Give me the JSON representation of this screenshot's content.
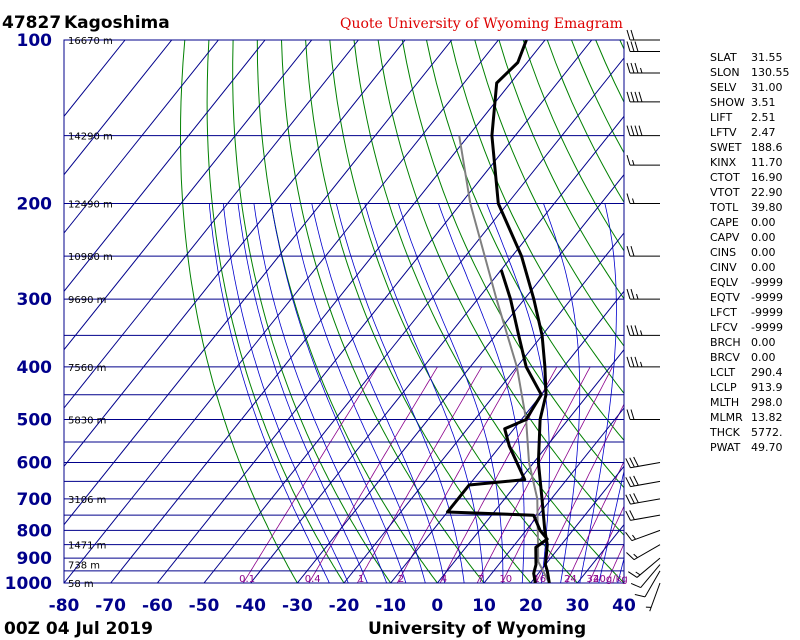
{
  "header": {
    "station_id": "47827",
    "station_name": "Kagoshima",
    "source_note": "Quote University of Wyoming Emagram"
  },
  "footer": {
    "time": "00Z 04 Jul 2019",
    "credit": "University of Wyoming"
  },
  "chart_data": {
    "type": "skew-t",
    "pressure_axis": {
      "log_scale": true,
      "range_hpa": [
        1000,
        100
      ],
      "ticks": [
        100,
        200,
        300,
        400,
        500,
        600,
        700,
        800,
        900,
        1000
      ]
    },
    "temperature_axis": {
      "range_c": [
        -80,
        40
      ],
      "ticks": [
        -80,
        -70,
        -60,
        -50,
        -40,
        -30,
        -20,
        -10,
        0,
        10,
        20,
        30,
        40
      ]
    },
    "height_labels": [
      {
        "p": 100,
        "text": "16670 m"
      },
      {
        "p": 150,
        "text": "14290 m"
      },
      {
        "p": 200,
        "text": "12490 m"
      },
      {
        "p": 250,
        "text": "10980 m"
      },
      {
        "p": 300,
        "text": "9690 m"
      },
      {
        "p": 400,
        "text": "7560 m"
      },
      {
        "p": 500,
        "text": "5830 m"
      },
      {
        "p": 700,
        "text": "3106 m"
      },
      {
        "p": 850,
        "text": "1471 m"
      },
      {
        "p": 925,
        "text": "738 m"
      },
      {
        "p": 1000,
        "text": "58 m"
      }
    ],
    "mixing_ratio_labels": [
      "0.1",
      "0.4",
      "1",
      "2",
      "4",
      "7",
      "10",
      "16",
      "24",
      "32",
      "40g/kg"
    ],
    "temperature_profile": [
      {
        "p": 1000,
        "t": 24
      },
      {
        "p": 950,
        "t": 21.5
      },
      {
        "p": 925,
        "t": 20
      },
      {
        "p": 850,
        "t": 17
      },
      {
        "p": 800,
        "t": 14
      },
      {
        "p": 700,
        "t": 8
      },
      {
        "p": 600,
        "t": 1
      },
      {
        "p": 500,
        "t": -6
      },
      {
        "p": 450,
        "t": -9
      },
      {
        "p": 400,
        "t": -14
      },
      {
        "p": 350,
        "t": -20
      },
      {
        "p": 300,
        "t": -28
      },
      {
        "p": 250,
        "t": -38
      },
      {
        "p": 200,
        "t": -52
      },
      {
        "p": 150,
        "t": -65
      },
      {
        "p": 120,
        "t": -73
      },
      {
        "p": 110,
        "t": -72
      },
      {
        "p": 100,
        "t": -74
      }
    ],
    "dewpoint_profile": [
      {
        "p": 1000,
        "t": 21
      },
      {
        "p": 960,
        "t": 19
      },
      {
        "p": 925,
        "t": 18
      },
      {
        "p": 860,
        "t": 15
      },
      {
        "p": 830,
        "t": 16
      },
      {
        "p": 800,
        "t": 13
      },
      {
        "p": 750,
        "t": 9
      },
      {
        "p": 740,
        "t": -10
      },
      {
        "p": 700,
        "t": -10
      },
      {
        "p": 660,
        "t": -10
      },
      {
        "p": 645,
        "t": 1
      },
      {
        "p": 560,
        "t": -8
      },
      {
        "p": 520,
        "t": -12
      },
      {
        "p": 500,
        "t": -9
      },
      {
        "p": 450,
        "t": -10
      },
      {
        "p": 400,
        "t": -18
      },
      {
        "p": 350,
        "t": -25
      },
      {
        "p": 300,
        "t": -33
      },
      {
        "p": 265,
        "t": -40
      }
    ],
    "parcel_profile": [
      {
        "p": 1000,
        "t": 24
      },
      {
        "p": 914,
        "t": 18
      },
      {
        "p": 850,
        "t": 15
      },
      {
        "p": 700,
        "t": 7
      },
      {
        "p": 600,
        "t": -1
      },
      {
        "p": 500,
        "t": -9
      },
      {
        "p": 400,
        "t": -20
      },
      {
        "p": 300,
        "t": -36
      },
      {
        "p": 200,
        "t": -58
      },
      {
        "p": 150,
        "t": -72
      }
    ],
    "wind_barbs": [
      {
        "p": 1000,
        "dir": 200,
        "spd": 5
      },
      {
        "p": 950,
        "dir": 210,
        "spd": 10
      },
      {
        "p": 925,
        "dir": 220,
        "spd": 10
      },
      {
        "p": 900,
        "dir": 230,
        "spd": 15
      },
      {
        "p": 850,
        "dir": 240,
        "spd": 15
      },
      {
        "p": 800,
        "dir": 250,
        "spd": 15
      },
      {
        "p": 750,
        "dir": 260,
        "spd": 20
      },
      {
        "p": 700,
        "dir": 260,
        "spd": 30
      },
      {
        "p": 650,
        "dir": 260,
        "spd": 30
      },
      {
        "p": 600,
        "dir": 260,
        "spd": 30
      },
      {
        "p": 500,
        "dir": 270,
        "spd": 20
      },
      {
        "p": 400,
        "dir": 270,
        "spd": 35
      },
      {
        "p": 350,
        "dir": 270,
        "spd": 35
      },
      {
        "p": 300,
        "dir": 270,
        "spd": 25
      },
      {
        "p": 250,
        "dir": 270,
        "spd": 20
      },
      {
        "p": 200,
        "dir": 270,
        "spd": 15
      },
      {
        "p": 170,
        "dir": 270,
        "spd": 15
      },
      {
        "p": 150,
        "dir": 270,
        "spd": 40
      },
      {
        "p": 130,
        "dir": 270,
        "spd": 40
      },
      {
        "p": 115,
        "dir": 270,
        "spd": 35
      },
      {
        "p": 105,
        "dir": 270,
        "spd": 30
      },
      {
        "p": 100,
        "dir": 270,
        "spd": 20
      }
    ]
  },
  "indices": [
    {
      "name": "SLAT",
      "value": "31.55"
    },
    {
      "name": "SLON",
      "value": "130.55"
    },
    {
      "name": "SELV",
      "value": "31.00"
    },
    {
      "name": "SHOW",
      "value": "3.51"
    },
    {
      "name": "LIFT",
      "value": "2.51"
    },
    {
      "name": "LFTV",
      "value": "2.47"
    },
    {
      "name": "SWET",
      "value": "188.6"
    },
    {
      "name": "KINX",
      "value": "11.70"
    },
    {
      "name": "CTOT",
      "value": "16.90"
    },
    {
      "name": "VTOT",
      "value": "22.90"
    },
    {
      "name": "TOTL",
      "value": "39.80"
    },
    {
      "name": "CAPE",
      "value": "0.00"
    },
    {
      "name": "CAPV",
      "value": "0.00"
    },
    {
      "name": "CINS",
      "value": "0.00"
    },
    {
      "name": "CINV",
      "value": "0.00"
    },
    {
      "name": "EQLV",
      "value": "-9999"
    },
    {
      "name": "EQTV",
      "value": "-9999"
    },
    {
      "name": "LFCT",
      "value": "-9999"
    },
    {
      "name": "LFCV",
      "value": "-9999"
    },
    {
      "name": "BRCH",
      "value": "0.00"
    },
    {
      "name": "BRCV",
      "value": "0.00"
    },
    {
      "name": "LCLT",
      "value": "290.4"
    },
    {
      "name": "LCLP",
      "value": "913.9"
    },
    {
      "name": "MLTH",
      "value": "298.0"
    },
    {
      "name": "MLMR",
      "value": "13.82"
    },
    {
      "name": "THCK",
      "value": "5772."
    },
    {
      "name": "PWAT",
      "value": "49.70"
    }
  ],
  "colors": {
    "grid": "#00008b",
    "dry_adiabat": "#008000",
    "moist_adiabat": "#0000cd",
    "mixing_ratio": "#8b008b",
    "temperature": "#000000",
    "parcel": "#808080",
    "quote": "#dd0000"
  }
}
